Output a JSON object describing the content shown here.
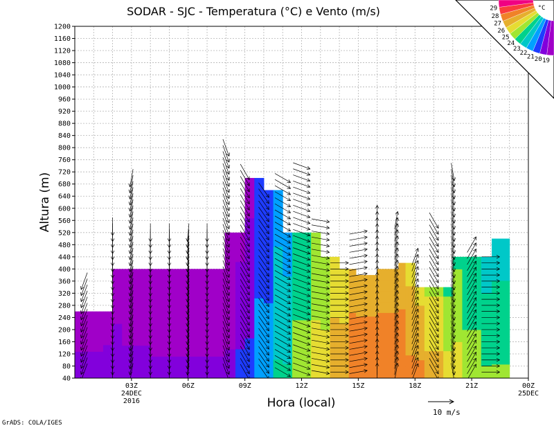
{
  "chart_data": {
    "type": "heatmap",
    "title": "SODAR - SJC - Temperatura (°C) e Vento (m/s)",
    "xlabel": "Hora (local)",
    "ylabel": "Altura (m)",
    "ylim": [
      40,
      1200
    ],
    "xlim": [
      0,
      24
    ],
    "grid": true,
    "y_ticks": [
      "40",
      "80",
      "120",
      "160",
      "200",
      "240",
      "280",
      "320",
      "360",
      "400",
      "440",
      "480",
      "520",
      "560",
      "600",
      "640",
      "680",
      "720",
      "760",
      "800",
      "840",
      "880",
      "920",
      "960",
      "1000",
      "1040",
      "1080",
      "1120",
      "1160",
      "1200"
    ],
    "x_ticks": [
      {
        "hour": 3,
        "lines": [
          "03Z",
          "24DEC",
          "2016"
        ]
      },
      {
        "hour": 6,
        "lines": [
          "06Z"
        ]
      },
      {
        "hour": 9,
        "lines": [
          "09Z"
        ]
      },
      {
        "hour": 12,
        "lines": [
          "12Z"
        ]
      },
      {
        "hour": 15,
        "lines": [
          "15Z"
        ]
      },
      {
        "hour": 18,
        "lines": [
          "18Z"
        ]
      },
      {
        "hour": 21,
        "lines": [
          "21Z"
        ]
      },
      {
        "hour": 24,
        "lines": [
          "00Z",
          "25DEC"
        ]
      }
    ],
    "colorbar": {
      "unit": "°C",
      "levels": [
        "19",
        "20",
        "21",
        "22",
        "23",
        "24",
        "25",
        "26",
        "27",
        "28",
        "29"
      ],
      "colors": [
        "#a000c8",
        "#8200dc",
        "#1e3cff",
        "#00a0ff",
        "#00c8c8",
        "#00d28c",
        "#a0e632",
        "#e6dc32",
        "#e6af2d",
        "#f08228",
        "#fa3c3c",
        "#f00082"
      ]
    },
    "data_top_heights": [
      {
        "x0": 0.0,
        "x1": 1.5,
        "top": 260
      },
      {
        "x0": 1.5,
        "x1": 2.0,
        "top": 260
      },
      {
        "x0": 2.0,
        "x1": 3.0,
        "top": 400
      },
      {
        "x0": 3.0,
        "x1": 8.0,
        "top": 400
      },
      {
        "x0": 8.0,
        "x1": 9.0,
        "top": 520
      },
      {
        "x0": 9.0,
        "x1": 10.0,
        "top": 700
      },
      {
        "x0": 10.0,
        "x1": 11.0,
        "top": 660
      },
      {
        "x0": 11.0,
        "x1": 12.0,
        "top": 520
      },
      {
        "x0": 12.0,
        "x1": 13.0,
        "top": 520
      },
      {
        "x0": 13.0,
        "x1": 14.0,
        "top": 440
      },
      {
        "x0": 14.0,
        "x1": 15.0,
        "top": 400
      },
      {
        "x0": 15.0,
        "x1": 16.0,
        "top": 380
      },
      {
        "x0": 16.0,
        "x1": 17.0,
        "top": 400
      },
      {
        "x0": 17.0,
        "x1": 18.0,
        "top": 420
      },
      {
        "x0": 18.0,
        "x1": 19.0,
        "top": 340
      },
      {
        "x0": 19.0,
        "x1": 20.0,
        "top": 340
      },
      {
        "x0": 20.0,
        "x1": 21.0,
        "top": 440
      },
      {
        "x0": 21.0,
        "x1": 22.0,
        "top": 440
      },
      {
        "x0": 22.0,
        "x1": 23.0,
        "top": 500
      }
    ],
    "temperature_by_hour": [
      {
        "x0": 0.0,
        "x1": 1.5,
        "temp": 19.5
      },
      {
        "x0": 1.5,
        "x1": 2.5,
        "temp": 19.7
      },
      {
        "x0": 2.5,
        "x1": 4.0,
        "temp": 19.4
      },
      {
        "x0": 4.0,
        "x1": 8.5,
        "temp": 19.3
      },
      {
        "x0": 8.5,
        "x1": 9.5,
        "temp": 20.2
      },
      {
        "x0": 9.5,
        "x1": 10.5,
        "temp": 21.5
      },
      {
        "x0": 10.5,
        "x1": 11.5,
        "temp": 23.0
      },
      {
        "x0": 11.5,
        "x1": 12.5,
        "temp": 24.5
      },
      {
        "x0": 12.5,
        "x1": 13.5,
        "temp": 25.5
      },
      {
        "x0": 13.5,
        "x1": 14.5,
        "temp": 26.7
      },
      {
        "x0": 14.5,
        "x1": 17.5,
        "temp": 27.8
      },
      {
        "x0": 17.5,
        "x1": 18.5,
        "temp": 27.2
      },
      {
        "x0": 18.5,
        "x1": 19.5,
        "temp": 26.4
      },
      {
        "x0": 19.5,
        "x1": 20.5,
        "temp": 25.4
      },
      {
        "x0": 20.5,
        "x1": 21.5,
        "temp": 24.6
      },
      {
        "x0": 21.5,
        "x1": 23.0,
        "temp": 24.0
      }
    ],
    "wind_profile": [
      {
        "hour": 0.5,
        "top": 360,
        "dir": 200
      },
      {
        "hour": 2.0,
        "top": 540,
        "dir": 180
      },
      {
        "hour": 3.0,
        "top": 700,
        "dir": 190
      },
      {
        "hour": 4.0,
        "top": 520,
        "dir": 180
      },
      {
        "hour": 5.0,
        "top": 520,
        "dir": 180
      },
      {
        "hour": 6.0,
        "top": 520,
        "dir": 185
      },
      {
        "hour": 7.0,
        "top": 520,
        "dir": 180
      },
      {
        "hour": 8.0,
        "top": 800,
        "dir": 160
      },
      {
        "hour": 9.0,
        "top": 720,
        "dir": 150
      },
      {
        "hour": 10.0,
        "top": 660,
        "dir": 145
      },
      {
        "hour": 11.0,
        "top": 700,
        "dir": 120
      },
      {
        "hour": 12.0,
        "top": 740,
        "dir": 110
      },
      {
        "hour": 13.0,
        "top": 560,
        "dir": 100
      },
      {
        "hour": 14.0,
        "top": 420,
        "dir": 90
      },
      {
        "hour": 15.0,
        "top": 520,
        "dir": 80
      },
      {
        "hour": 16.0,
        "top": 580,
        "dir": 0
      },
      {
        "hour": 17.0,
        "top": 560,
        "dir": 10
      },
      {
        "hour": 18.0,
        "top": 440,
        "dir": 20
      },
      {
        "hour": 19.0,
        "top": 560,
        "dir": 150
      },
      {
        "hour": 20.0,
        "top": 720,
        "dir": 170
      },
      {
        "hour": 21.0,
        "top": 480,
        "dir": 30
      },
      {
        "hour": 22.0,
        "top": 440,
        "dir": 90
      }
    ],
    "wind_reference": {
      "value": "10 m/s"
    },
    "credit": "GrADS: COLA/IGES"
  }
}
